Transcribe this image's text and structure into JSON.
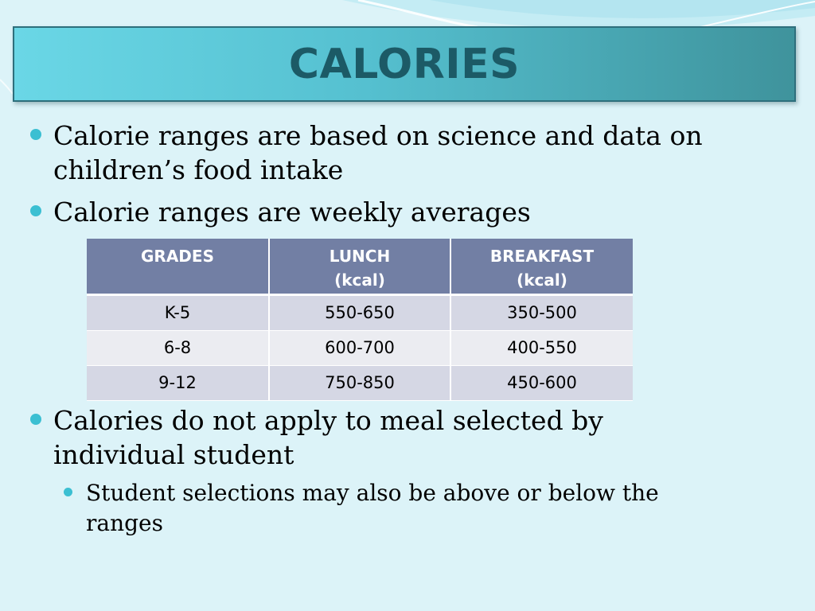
{
  "slide": {
    "title": "CALORIES",
    "bullets": [
      "Calorie ranges are based on science and data on children’s food intake",
      "Calorie ranges are weekly averages",
      "Calories do not apply to meal selected by individual student"
    ],
    "sub_bullets": [
      "Student selections may also be above or below the ranges"
    ]
  },
  "table": {
    "headers": [
      {
        "line1": "GRADES",
        "line2": ""
      },
      {
        "line1": "LUNCH",
        "line2": "(kcal)"
      },
      {
        "line1": "BREAKFAST",
        "line2": "(kcal)"
      }
    ],
    "rows": [
      [
        "K-5",
        "550-650",
        "350-500"
      ],
      [
        "6-8",
        "600-700",
        "400-550"
      ],
      [
        "9-12",
        "750-850",
        "450-600"
      ]
    ]
  },
  "colors": {
    "title_text": "#1c5a66",
    "bullet_dot": "#3bbfd2",
    "header_bg": "#727fa4",
    "background": "#dcf3f8"
  }
}
